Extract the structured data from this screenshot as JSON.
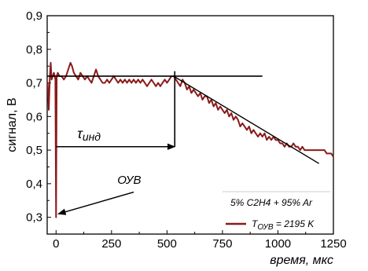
{
  "chart_data": {
    "type": "line",
    "title": "",
    "xlabel": "время, мкс",
    "ylabel": "сигнал, В",
    "xlim": [
      -40,
      1250
    ],
    "ylim": [
      0.25,
      0.9
    ],
    "xticks": [
      0,
      250,
      500,
      750,
      1000,
      1250
    ],
    "yticks": [
      0.3,
      0.4,
      0.5,
      0.6,
      0.7,
      0.8,
      0.9
    ],
    "xtick_labels": [
      "0",
      "250",
      "500",
      "750",
      "1000",
      "1250"
    ],
    "ytick_labels": [
      "0,3",
      "0,4",
      "0,5",
      "0,6",
      "0,7",
      "0,8",
      "0,9"
    ],
    "grid": false,
    "legend_position": "bottom-right",
    "legend_title": "5% C2H4 + 95% Ar",
    "series": [
      {
        "name": "T_ОУВ = 2195 K",
        "name_main": "T",
        "name_sub": "ОУВ",
        "name_rest": " = 2195 K",
        "color": "#8b1a1a",
        "points": [
          [
            -38,
            0.7
          ],
          [
            -33,
            0.62
          ],
          [
            -28,
            0.72
          ],
          [
            -24,
            0.76
          ],
          [
            -20,
            0.71
          ],
          [
            -15,
            0.72
          ],
          [
            -10,
            0.73
          ],
          [
            -6,
            0.72
          ],
          [
            -3,
            0.71
          ],
          [
            0,
            0.3
          ],
          [
            3,
            0.72
          ],
          [
            8,
            0.73
          ],
          [
            15,
            0.72
          ],
          [
            25,
            0.72
          ],
          [
            35,
            0.71
          ],
          [
            45,
            0.72
          ],
          [
            55,
            0.74
          ],
          [
            65,
            0.76
          ],
          [
            72,
            0.75
          ],
          [
            80,
            0.73
          ],
          [
            90,
            0.72
          ],
          [
            100,
            0.71
          ],
          [
            110,
            0.73
          ],
          [
            120,
            0.72
          ],
          [
            130,
            0.71
          ],
          [
            140,
            0.72
          ],
          [
            150,
            0.71
          ],
          [
            160,
            0.7
          ],
          [
            170,
            0.72
          ],
          [
            180,
            0.74
          ],
          [
            190,
            0.72
          ],
          [
            200,
            0.71
          ],
          [
            210,
            0.7
          ],
          [
            220,
            0.7
          ],
          [
            230,
            0.71
          ],
          [
            240,
            0.7
          ],
          [
            250,
            0.71
          ],
          [
            260,
            0.72
          ],
          [
            270,
            0.71
          ],
          [
            280,
            0.7
          ],
          [
            290,
            0.71
          ],
          [
            300,
            0.7
          ],
          [
            310,
            0.71
          ],
          [
            320,
            0.7
          ],
          [
            330,
            0.71
          ],
          [
            340,
            0.7
          ],
          [
            350,
            0.71
          ],
          [
            360,
            0.7
          ],
          [
            370,
            0.71
          ],
          [
            380,
            0.7
          ],
          [
            390,
            0.71
          ],
          [
            400,
            0.7
          ],
          [
            410,
            0.69
          ],
          [
            420,
            0.7
          ],
          [
            430,
            0.71
          ],
          [
            440,
            0.7
          ],
          [
            450,
            0.69
          ],
          [
            460,
            0.7
          ],
          [
            470,
            0.69
          ],
          [
            480,
            0.7
          ],
          [
            490,
            0.71
          ],
          [
            500,
            0.7
          ],
          [
            510,
            0.71
          ],
          [
            520,
            0.72
          ],
          [
            530,
            0.72
          ],
          [
            540,
            0.71
          ],
          [
            550,
            0.7
          ],
          [
            560,
            0.69
          ],
          [
            570,
            0.71
          ],
          [
            580,
            0.7
          ],
          [
            590,
            0.68
          ],
          [
            600,
            0.69
          ],
          [
            610,
            0.67
          ],
          [
            620,
            0.68
          ],
          [
            630,
            0.67
          ],
          [
            640,
            0.66
          ],
          [
            650,
            0.67
          ],
          [
            660,
            0.65
          ],
          [
            670,
            0.66
          ],
          [
            680,
            0.66
          ],
          [
            690,
            0.64
          ],
          [
            700,
            0.65
          ],
          [
            710,
            0.63
          ],
          [
            720,
            0.64
          ],
          [
            730,
            0.62
          ],
          [
            740,
            0.63
          ],
          [
            750,
            0.62
          ],
          [
            760,
            0.61
          ],
          [
            770,
            0.62
          ],
          [
            780,
            0.6
          ],
          [
            790,
            0.61
          ],
          [
            800,
            0.59
          ],
          [
            810,
            0.6
          ],
          [
            820,
            0.59
          ],
          [
            830,
            0.57
          ],
          [
            840,
            0.58
          ],
          [
            850,
            0.57
          ],
          [
            860,
            0.56
          ],
          [
            870,
            0.57
          ],
          [
            880,
            0.55
          ],
          [
            890,
            0.56
          ],
          [
            900,
            0.55
          ],
          [
            910,
            0.54
          ],
          [
            920,
            0.55
          ],
          [
            930,
            0.54
          ],
          [
            940,
            0.55
          ],
          [
            950,
            0.53
          ],
          [
            960,
            0.54
          ],
          [
            970,
            0.53
          ],
          [
            980,
            0.54
          ],
          [
            990,
            0.53
          ],
          [
            1000,
            0.53
          ],
          [
            1010,
            0.52
          ],
          [
            1020,
            0.52
          ],
          [
            1030,
            0.51
          ],
          [
            1040,
            0.52
          ],
          [
            1050,
            0.51
          ],
          [
            1060,
            0.51
          ],
          [
            1070,
            0.52
          ],
          [
            1080,
            0.51
          ],
          [
            1090,
            0.51
          ],
          [
            1100,
            0.5
          ],
          [
            1110,
            0.51
          ],
          [
            1120,
            0.5
          ],
          [
            1130,
            0.5
          ],
          [
            1140,
            0.5
          ],
          [
            1150,
            0.5
          ],
          [
            1160,
            0.5
          ],
          [
            1170,
            0.5
          ],
          [
            1180,
            0.5
          ],
          [
            1190,
            0.5
          ],
          [
            1200,
            0.5
          ],
          [
            1210,
            0.5
          ],
          [
            1220,
            0.49
          ],
          [
            1230,
            0.49
          ],
          [
            1240,
            0.49
          ],
          [
            1250,
            0.48
          ]
        ]
      }
    ],
    "reference_lines": {
      "plateau": {
        "x1": -40,
        "x2": 930,
        "y": 0.72
      },
      "vertical_marker": {
        "x": 535,
        "y1": 0.51,
        "y2": 0.735
      },
      "slope_line": {
        "x1": 530,
        "y1": 0.72,
        "x2": 1185,
        "y2": 0.46
      }
    },
    "annotations": {
      "tau": {
        "label_symbol": "τ",
        "label_sub": "инд",
        "text_x": 95,
        "text_y": 0.535,
        "arrow_from": [
          0,
          0.51
        ],
        "arrow_to": [
          535,
          0.51
        ]
      },
      "ouv": {
        "label": "ОУВ",
        "text_x": 330,
        "text_y": 0.4,
        "arrow_from": [
          350,
          0.375
        ],
        "arrow_to": [
          10,
          0.31
        ]
      }
    }
  }
}
